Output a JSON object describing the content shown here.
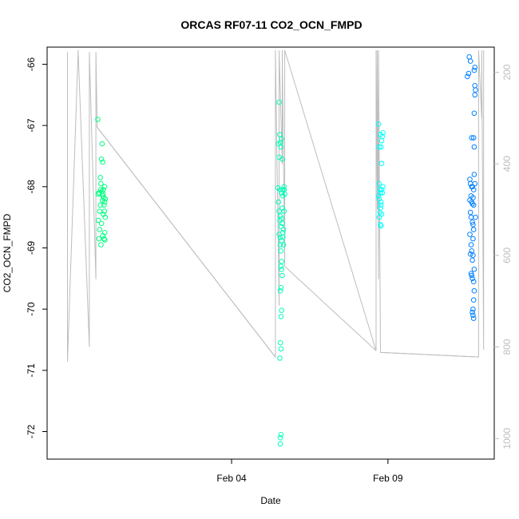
{
  "chart_data": {
    "type": "scatter",
    "title": "ORCAS RF07-11 CO2_OCN_FMPD",
    "xlabel": "Date",
    "ylabel": "CO2_OCN_FMPD",
    "x_ticks": [
      {
        "label": "Feb 04",
        "value": 4.0
      },
      {
        "label": "Feb 09",
        "value": 9.0
      }
    ],
    "xlim": [
      -1.9,
      12.4
    ],
    "ylim": [
      -72.45,
      -65.72
    ],
    "y_ticks": [
      -66,
      -67,
      -68,
      -69,
      -70,
      -71,
      -72
    ],
    "y2_label": "",
    "y2lim": [
      1045,
      145
    ],
    "y2_ticks": [
      200,
      400,
      600,
      800,
      1000
    ],
    "grid": false,
    "colors": {
      "flight1": "#00ff80",
      "flight2": "#00ffb8",
      "flight3": "#00ffff",
      "flight4": "#0080ff",
      "altitude": "#bdbdbd",
      "axis": "#000000",
      "right_axis": "#bdbdbd"
    },
    "series": [
      {
        "color": "#00ff80",
        "points": [
          [
            -0.28,
            -66.9
          ],
          [
            -0.22,
            -68.4
          ],
          [
            -0.18,
            -67.95
          ],
          [
            -0.24,
            -68.1
          ],
          [
            -0.2,
            -68.3
          ],
          [
            -0.26,
            -68.55
          ],
          [
            -0.22,
            -68.7
          ],
          [
            -0.18,
            -68.95
          ],
          [
            -0.24,
            -68.85
          ],
          [
            -0.14,
            -67.3
          ],
          [
            -0.16,
            -67.55
          ],
          [
            -0.12,
            -67.6
          ],
          [
            -0.1,
            -68.05
          ],
          [
            -0.12,
            -68.15
          ],
          [
            -0.08,
            -68.3
          ],
          [
            -0.1,
            -68.45
          ],
          [
            -0.12,
            -68.8
          ],
          [
            -0.08,
            -68.85
          ],
          [
            -0.06,
            -68.0
          ],
          [
            -0.04,
            -68.2
          ],
          [
            -0.06,
            -68.25
          ],
          [
            -0.04,
            -68.5
          ],
          [
            -0.06,
            -68.75
          ],
          [
            -0.15,
            -68.08
          ],
          [
            -0.13,
            -68.22
          ],
          [
            -0.11,
            -68.12
          ],
          [
            -0.09,
            -68.18
          ],
          [
            -0.2,
            -67.85
          ],
          [
            -0.16,
            -68.6
          ],
          [
            -0.05,
            -68.87
          ],
          [
            -0.07,
            -68.4
          ],
          [
            -0.19,
            -68.05
          ],
          [
            -0.23,
            -68.1
          ],
          [
            -0.27,
            -68.12
          ]
        ]
      },
      {
        "color": "#00ffb8",
        "points": [
          [
            5.52,
            -66.62
          ],
          [
            5.54,
            -67.15
          ],
          [
            5.6,
            -67.22
          ],
          [
            5.5,
            -67.3
          ],
          [
            5.56,
            -67.28
          ],
          [
            5.58,
            -67.35
          ],
          [
            5.62,
            -67.55
          ],
          [
            5.52,
            -67.52
          ],
          [
            5.48,
            -68.02
          ],
          [
            5.56,
            -68.05
          ],
          [
            5.6,
            -68.1
          ],
          [
            5.64,
            -68.05
          ],
          [
            5.68,
            -68.0
          ],
          [
            5.52,
            -68.4
          ],
          [
            5.56,
            -68.48
          ],
          [
            5.6,
            -68.52
          ],
          [
            5.54,
            -68.55
          ],
          [
            5.62,
            -68.6
          ],
          [
            5.58,
            -68.65
          ],
          [
            5.64,
            -68.75
          ],
          [
            5.66,
            -68.7
          ],
          [
            5.52,
            -68.78
          ],
          [
            5.56,
            -68.83
          ],
          [
            5.6,
            -68.88
          ],
          [
            5.64,
            -68.82
          ],
          [
            5.56,
            -68.95
          ],
          [
            5.58,
            -69.05
          ],
          [
            5.6,
            -69.22
          ],
          [
            5.58,
            -69.3
          ],
          [
            5.6,
            -69.35
          ],
          [
            5.62,
            -69.45
          ],
          [
            5.56,
            -69.7
          ],
          [
            5.58,
            -69.65
          ],
          [
            5.6,
            -70.02
          ],
          [
            5.58,
            -70.12
          ],
          [
            5.56,
            -70.55
          ],
          [
            5.58,
            -70.65
          ],
          [
            5.54,
            -70.8
          ],
          [
            5.58,
            -72.05
          ],
          [
            5.56,
            -72.1
          ],
          [
            5.56,
            -72.2
          ],
          [
            5.64,
            -68.15
          ],
          [
            5.62,
            -68.35
          ],
          [
            5.66,
            -68.95
          ],
          [
            5.68,
            -68.05
          ],
          [
            5.7,
            -68.12
          ],
          [
            5.68,
            -68.4
          ],
          [
            5.5,
            -68.25
          ]
        ]
      },
      {
        "color": "#00ffff",
        "points": [
          [
            8.7,
            -66.98
          ],
          [
            8.72,
            -67.35
          ],
          [
            8.76,
            -67.15
          ],
          [
            8.8,
            -67.25
          ],
          [
            8.78,
            -67.35
          ],
          [
            8.82,
            -67.18
          ],
          [
            8.84,
            -67.12
          ],
          [
            8.8,
            -67.62
          ],
          [
            8.72,
            -67.95
          ],
          [
            8.74,
            -68.05
          ],
          [
            8.76,
            -68.1
          ],
          [
            8.7,
            -68.15
          ],
          [
            8.72,
            -68.2
          ],
          [
            8.78,
            -68.25
          ],
          [
            8.74,
            -68.42
          ],
          [
            8.72,
            -68.5
          ],
          [
            8.76,
            -68.62
          ],
          [
            8.78,
            -68.64
          ],
          [
            8.8,
            -68.05
          ],
          [
            8.82,
            -68.1
          ],
          [
            8.84,
            -68.0
          ],
          [
            8.78,
            -68.3
          ],
          [
            8.76,
            -68.35
          ],
          [
            8.8,
            -68.45
          ]
        ]
      },
      {
        "color": "#0080ff",
        "points": [
          [
            11.6,
            -65.88
          ],
          [
            11.64,
            -65.95
          ],
          [
            11.58,
            -66.15
          ],
          [
            11.54,
            -66.2
          ],
          [
            11.78,
            -66.05
          ],
          [
            11.76,
            -66.1
          ],
          [
            11.78,
            -66.35
          ],
          [
            11.8,
            -66.42
          ],
          [
            11.78,
            -66.5
          ],
          [
            11.76,
            -66.8
          ],
          [
            11.68,
            -67.2
          ],
          [
            11.74,
            -67.2
          ],
          [
            11.76,
            -67.35
          ],
          [
            11.62,
            -67.88
          ],
          [
            11.76,
            -67.8
          ],
          [
            11.78,
            -67.95
          ],
          [
            11.64,
            -67.95
          ],
          [
            11.7,
            -68.0
          ],
          [
            11.74,
            -68.05
          ],
          [
            11.66,
            -68.15
          ],
          [
            11.72,
            -68.18
          ],
          [
            11.68,
            -68.25
          ],
          [
            11.7,
            -68.28
          ],
          [
            11.74,
            -68.3
          ],
          [
            11.64,
            -68.42
          ],
          [
            11.66,
            -68.5
          ],
          [
            11.7,
            -68.58
          ],
          [
            11.72,
            -68.62
          ],
          [
            11.74,
            -68.7
          ],
          [
            11.62,
            -68.78
          ],
          [
            11.66,
            -68.95
          ],
          [
            11.68,
            -69.05
          ],
          [
            11.72,
            -69.12
          ],
          [
            11.7,
            -69.2
          ],
          [
            11.66,
            -69.42
          ],
          [
            11.68,
            -69.45
          ],
          [
            11.7,
            -69.5
          ],
          [
            11.74,
            -69.55
          ],
          [
            11.76,
            -69.7
          ],
          [
            11.74,
            -69.85
          ],
          [
            11.72,
            -70.0
          ],
          [
            11.7,
            -70.05
          ],
          [
            11.72,
            -70.1
          ],
          [
            11.74,
            -70.15
          ],
          [
            11.8,
            -68.5
          ],
          [
            11.62,
            -68.22
          ],
          [
            11.64,
            -69.1
          ],
          [
            11.68,
            -68.0
          ],
          [
            11.76,
            -69.35
          ],
          [
            11.72,
            -68.85
          ]
        ]
      }
    ],
    "altitude_trace": {
      "color": "#bdbdbd",
      "points": [
        [
          -1.25,
          156
        ],
        [
          -1.25,
          832
        ],
        [
          -0.91,
          156
        ],
        [
          -0.91,
          152
        ],
        [
          -0.55,
          800
        ],
        [
          -0.55,
          156
        ],
        [
          -0.34,
          652
        ],
        [
          -0.34,
          156
        ],
        [
          -0.3,
          320
        ],
        [
          5.4,
          822
        ],
        [
          5.4,
          152
        ],
        [
          5.52,
          710
        ],
        [
          5.52,
          152
        ],
        [
          5.62,
          400
        ],
        [
          5.62,
          152
        ],
        [
          5.7,
          624
        ],
        [
          5.7,
          152
        ],
        [
          8.62,
          808
        ],
        [
          8.62,
          152
        ],
        [
          8.66,
          500
        ],
        [
          8.66,
          152
        ],
        [
          8.7,
          652
        ],
        [
          8.7,
          152
        ],
        [
          8.76,
          812
        ],
        [
          11.9,
          822
        ],
        [
          11.9,
          152
        ],
        [
          12.0,
          300
        ],
        [
          12.0,
          152
        ],
        [
          12.06,
          806
        ],
        [
          12.06,
          152
        ]
      ],
      "connectors": [
        [
          [
            -0.3,
            320
          ],
          [
            5.4,
            822
          ]
        ],
        [
          [
            5.7,
            624
          ],
          [
            8.62,
            808
          ]
        ],
        [
          [
            8.76,
            812
          ],
          [
            11.9,
            822
          ]
        ]
      ]
    }
  }
}
